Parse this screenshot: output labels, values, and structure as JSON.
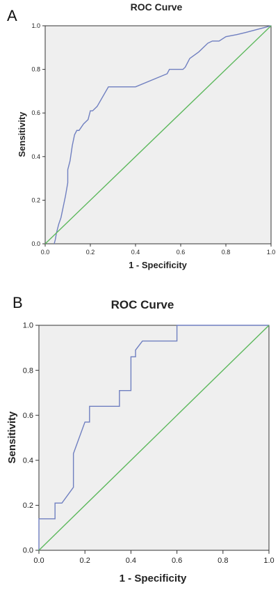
{
  "chart_data": [
    {
      "panel": "A",
      "type": "line",
      "title": "ROC Curve",
      "xlabel": "1 - Specificity",
      "ylabel": "Sensitivity",
      "xlim": [
        0,
        1
      ],
      "ylim": [
        0,
        1
      ],
      "xticks": [
        "0.0",
        "0.2",
        "0.4",
        "0.6",
        "0.8",
        "1.0"
      ],
      "yticks": [
        "0.0",
        "0.2",
        "0.4",
        "0.6",
        "0.8",
        "1.0"
      ],
      "grid": false,
      "series": [
        {
          "color": "#6f7fc0",
          "x": [
            0.04,
            0.045,
            0.05,
            0.06,
            0.07,
            0.08,
            0.09,
            0.1,
            0.1,
            0.11,
            0.12,
            0.13,
            0.14,
            0.15,
            0.17,
            0.19,
            0.2,
            0.21,
            0.23,
            0.28,
            0.4,
            0.54,
            0.55,
            0.59,
            0.61,
            0.62,
            0.64,
            0.68,
            0.72,
            0.74,
            0.77,
            0.8,
            0.85,
            0.89,
            1.0
          ],
          "y": [
            0.0,
            0.02,
            0.05,
            0.09,
            0.12,
            0.17,
            0.22,
            0.28,
            0.34,
            0.38,
            0.45,
            0.5,
            0.52,
            0.52,
            0.55,
            0.57,
            0.61,
            0.61,
            0.63,
            0.72,
            0.72,
            0.78,
            0.8,
            0.8,
            0.8,
            0.81,
            0.85,
            0.88,
            0.92,
            0.93,
            0.93,
            0.95,
            0.96,
            0.97,
            1.0
          ]
        },
        {
          "color": "#5cb85c",
          "x": [
            0,
            1
          ],
          "y": [
            0,
            1
          ]
        }
      ]
    },
    {
      "panel": "B",
      "type": "line",
      "title": "ROC Curve",
      "xlabel": "1 - Specificity",
      "ylabel": "Sensitivity",
      "xlim": [
        0,
        1
      ],
      "ylim": [
        0,
        1
      ],
      "xticks": [
        "0.0",
        "0.2",
        "0.4",
        "0.6",
        "0.8",
        "1.0"
      ],
      "yticks": [
        "0.0",
        "0.2",
        "0.4",
        "0.6",
        "0.8",
        "1.0"
      ],
      "grid": false,
      "series": [
        {
          "color": "#6f7fc0",
          "x": [
            0.0,
            0.0,
            0.07,
            0.07,
            0.1,
            0.15,
            0.15,
            0.2,
            0.22,
            0.22,
            0.35,
            0.35,
            0.4,
            0.4,
            0.42,
            0.42,
            0.45,
            0.6,
            0.6,
            1.0
          ],
          "y": [
            0.0,
            0.14,
            0.14,
            0.21,
            0.21,
            0.28,
            0.43,
            0.57,
            0.57,
            0.64,
            0.64,
            0.71,
            0.71,
            0.86,
            0.86,
            0.89,
            0.93,
            0.93,
            1.0,
            1.0
          ]
        },
        {
          "color": "#5cb85c",
          "x": [
            0,
            1
          ],
          "y": [
            0,
            1
          ]
        }
      ]
    }
  ]
}
